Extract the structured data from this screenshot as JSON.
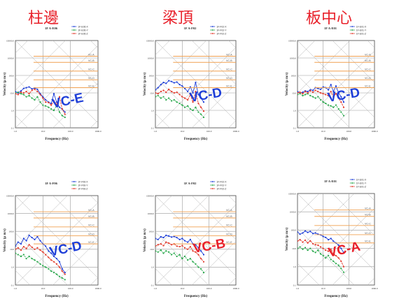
{
  "column_titles": [
    "柱邊",
    "梁頂",
    "板中心"
  ],
  "colors": {
    "title": "#e8202a",
    "badge_red": "#e8202a",
    "badge_blue": "#1f3fd8",
    "series_x": "#1f3fd8",
    "series_y": "#27a84a",
    "series_z": "#e23b2c",
    "criteria": "#f0a050",
    "grid": "#9a9a9a"
  },
  "chart_data": [
    {
      "type": "line",
      "log_x": true,
      "log_y": true,
      "title": "1F A-E06",
      "xlabel": "Frequency (Hz)",
      "ylabel": "Velocity (μ m/s)",
      "badge": "VC-E",
      "badge_color": "blue",
      "x_ticks": [
        "1.0",
        "10.0",
        "100.0",
        "1000.0"
      ],
      "y_ticks": [
        "10000.0",
        "1000.0",
        "100.0",
        "10.0",
        "1.0",
        "0.1"
      ],
      "legend": [
        "1F-E06-X",
        "1F-E06-Y",
        "1F-E06-Z"
      ],
      "criteria_labels": [
        "VC-A",
        "VC-B",
        "VC-C",
        "VC-D",
        "VC-E"
      ],
      "series": [
        {
          "x": [
            1,
            1.25,
            1.6,
            2,
            2.5,
            3.15,
            4,
            5,
            6.3,
            8,
            10,
            12.5,
            16,
            20,
            25,
            31.5,
            40,
            50,
            63
          ],
          "values": [
            12,
            10,
            13,
            18,
            20,
            22,
            17,
            19,
            16,
            9,
            6,
            4,
            3,
            2.5,
            9,
            3,
            1.5,
            1.2,
            0.8
          ]
        },
        {
          "x": [
            1,
            1.25,
            1.6,
            2,
            2.5,
            3.15,
            4,
            5,
            6.3,
            8,
            10,
            12.5,
            16,
            20,
            25,
            31.5,
            40,
            50,
            63
          ],
          "values": [
            10,
            11,
            9,
            8,
            6,
            7,
            5,
            4,
            6,
            3,
            2,
            1.8,
            1.5,
            1.2,
            1,
            2,
            0.8,
            0.5,
            0.4
          ]
        },
        {
          "x": [
            1,
            1.25,
            1.6,
            2,
            2.5,
            3.15,
            4,
            5,
            6.3,
            8,
            10,
            12.5,
            16,
            20,
            25,
            31.5,
            40,
            50,
            63
          ],
          "values": [
            9,
            8,
            11,
            10,
            12,
            9,
            14,
            16,
            12,
            8,
            5,
            3,
            2.8,
            2,
            3.5,
            2.2,
            6,
            1.2,
            0.6
          ]
        }
      ]
    },
    {
      "type": "line",
      "log_x": true,
      "log_y": true,
      "title": "1F A-F02",
      "xlabel": "Frequency (Hz)",
      "ylabel": "Velocity (μ m/s)",
      "badge": "VC-D",
      "badge_color": "blue",
      "x_ticks": [
        "1.0",
        "10.0",
        "100.0",
        "1000.0"
      ],
      "y_ticks": [
        "10000.0",
        "1000.0",
        "100.0",
        "10.0",
        "1.0",
        "0.1"
      ],
      "legend": [
        "1F-F02-X",
        "1F-F02-Y",
        "1F-F02-Z"
      ],
      "criteria_labels": [
        "VC-A",
        "VC-B",
        "VC-C",
        "VC-D",
        "VC-E"
      ],
      "series": [
        {
          "x": [
            1,
            1.25,
            1.6,
            2,
            2.5,
            3.15,
            4,
            5,
            6.3,
            8,
            10,
            12.5,
            16,
            20,
            25,
            31.5,
            40,
            50,
            63
          ],
          "values": [
            15,
            20,
            30,
            40,
            35,
            50,
            45,
            38,
            42,
            30,
            25,
            18,
            12,
            22,
            10,
            40,
            8,
            5,
            3
          ]
        },
        {
          "x": [
            1,
            1.25,
            1.6,
            2,
            2.5,
            3.15,
            4,
            5,
            6.3,
            8,
            10,
            12.5,
            16,
            20,
            25,
            31.5,
            40,
            50,
            63
          ],
          "values": [
            6,
            7,
            5,
            6,
            4,
            5,
            3.5,
            4,
            3,
            2.5,
            2,
            1.5,
            1.8,
            1.2,
            1,
            1.5,
            0.8,
            0.6,
            0.4
          ]
        },
        {
          "x": [
            1,
            1.25,
            1.6,
            2,
            2.5,
            3.15,
            4,
            5,
            6.3,
            8,
            10,
            12.5,
            16,
            20,
            25,
            31.5,
            40,
            50,
            63
          ],
          "values": [
            10,
            9,
            12,
            14,
            11,
            16,
            12,
            10,
            11,
            8,
            6,
            5,
            4,
            8,
            3,
            12,
            2.5,
            1.5,
            0.9
          ]
        }
      ]
    },
    {
      "type": "line",
      "log_x": true,
      "log_y": true,
      "title": "1F A-E01",
      "xlabel": "Frequency (Hz)",
      "ylabel": "Velocity (μ m/s)",
      "badge": "VC-D",
      "badge_color": "blue",
      "x_ticks": [
        "1.0",
        "10.0",
        "100.0",
        "1000.0"
      ],
      "y_ticks": [
        "10000.0",
        "1000.0",
        "100.0",
        "10.0",
        "1.0",
        "0.1"
      ],
      "legend": [
        "1F-E01-X",
        "1F-E01-Y",
        "1F-E01-Z"
      ],
      "criteria_labels": [
        "VC-A",
        "VC-B",
        "VC-C",
        "VC-D",
        "VC-E"
      ],
      "series": [
        {
          "x": [
            1,
            1.25,
            1.6,
            2,
            2.5,
            3.15,
            4,
            5,
            6.3,
            8,
            10,
            12.5,
            16,
            20,
            25,
            31.5,
            40,
            50,
            63
          ],
          "values": [
            12,
            10,
            11,
            13,
            12,
            15,
            14,
            20,
            18,
            16,
            22,
            20,
            15,
            30,
            12,
            25,
            10,
            6,
            3
          ]
        },
        {
          "x": [
            1,
            1.25,
            1.6,
            2,
            2.5,
            3.15,
            4,
            5,
            6.3,
            8,
            10,
            12.5,
            16,
            20,
            25,
            31.5,
            40,
            50,
            63
          ],
          "values": [
            8,
            9,
            7,
            8,
            9,
            7,
            6,
            5,
            6,
            4,
            3,
            2.5,
            2,
            1.8,
            1.5,
            2,
            1.2,
            0.8,
            0.5
          ]
        },
        {
          "x": [
            1,
            1.25,
            1.6,
            2,
            2.5,
            3.15,
            4,
            5,
            6.3,
            8,
            10,
            12.5,
            16,
            20,
            25,
            31.5,
            40,
            50,
            63
          ],
          "values": [
            10,
            11,
            9,
            12,
            10,
            13,
            11,
            14,
            12,
            10,
            9,
            8,
            7,
            12,
            6,
            9,
            5,
            3,
            1.5
          ]
        }
      ]
    },
    {
      "type": "line",
      "log_x": true,
      "log_y": true,
      "title": "1F A-F06",
      "xlabel": "Frequency (Hz)",
      "ylabel": "Velocity (μ m/s)",
      "badge": "VC-D",
      "badge_color": "blue",
      "x_ticks": [
        "1.0",
        "10.0",
        "100.0",
        "1000.0"
      ],
      "y_ticks": [
        "10000.0",
        "1000.0",
        "100.0",
        "10.0",
        "1.0",
        "0.1"
      ],
      "legend": [
        "1F-F06-X",
        "1F-F06-Y",
        "1F-F06-Z"
      ],
      "criteria_labels": [
        "VC-A",
        "VC-B",
        "VC-C",
        "VC-D",
        "VC-E"
      ],
      "series": [
        {
          "x": [
            1,
            1.25,
            1.6,
            2,
            2.5,
            3.15,
            4,
            5,
            6.3,
            8,
            10,
            12.5,
            16,
            20,
            25,
            31.5,
            40,
            50,
            63
          ],
          "values": [
            15,
            25,
            20,
            40,
            30,
            60,
            45,
            35,
            50,
            30,
            20,
            15,
            8,
            6,
            4,
            3,
            2,
            0.8,
            0.5
          ]
        },
        {
          "x": [
            1,
            1.25,
            1.6,
            2,
            2.5,
            3.15,
            4,
            5,
            6.3,
            8,
            10,
            12.5,
            16,
            20,
            25,
            31.5,
            40,
            50,
            63
          ],
          "values": [
            6,
            5,
            4,
            5,
            3,
            4,
            3,
            2.5,
            2,
            1.5,
            1.2,
            1,
            0.8,
            0.6,
            0.5,
            0.4,
            0.3,
            0.25,
            0.2
          ]
        },
        {
          "x": [
            1,
            1.25,
            1.6,
            2,
            2.5,
            3.15,
            4,
            5,
            6.3,
            8,
            10,
            12.5,
            16,
            20,
            25,
            31.5,
            40,
            50,
            63
          ],
          "values": [
            10,
            12,
            9,
            14,
            11,
            18,
            13,
            10,
            12,
            9,
            7,
            5,
            3.5,
            2.5,
            2,
            1.5,
            1,
            0.6,
            0.4
          ]
        }
      ]
    },
    {
      "type": "line",
      "log_x": true,
      "log_y": true,
      "title": "1F A-F02",
      "xlabel": "Frequency (Hz)",
      "ylabel": "Velocity (μ m/s)",
      "badge": "VC-B",
      "badge_color": "red",
      "x_ticks": [
        "1.0",
        "10.0",
        "100.0",
        "1000.0"
      ],
      "y_ticks": [
        "10000.0",
        "1000.0",
        "100.0",
        "10.0",
        "1.0",
        "0.1"
      ],
      "legend": [
        "1F-F02-X",
        "1F-F02-Y",
        "1F-F02-Z"
      ],
      "criteria_labels": [
        "VC-A",
        "VC-B",
        "VC-C",
        "VC-D",
        "VC-E"
      ],
      "series": [
        {
          "x": [
            1,
            1.25,
            1.6,
            2,
            2.5,
            3.15,
            4,
            5,
            6.3,
            8,
            10,
            12.5,
            16,
            20,
            25,
            31.5,
            40,
            50,
            63
          ],
          "values": [
            40,
            35,
            50,
            45,
            60,
            55,
            48,
            52,
            45,
            35,
            40,
            30,
            25,
            35,
            20,
            18,
            12,
            8,
            5
          ]
        },
        {
          "x": [
            1,
            1.25,
            1.6,
            2,
            2.5,
            3.15,
            4,
            5,
            6.3,
            8,
            10,
            12.5,
            16,
            20,
            25,
            31.5,
            40,
            50,
            63
          ],
          "values": [
            8,
            7,
            9,
            6,
            8,
            7,
            5,
            6,
            4,
            5,
            3,
            4,
            2.5,
            3,
            2,
            1.5,
            1,
            0.8,
            0.5
          ]
        },
        {
          "x": [
            1,
            1.25,
            1.6,
            2,
            2.5,
            3.15,
            4,
            5,
            6.3,
            8,
            10,
            12.5,
            16,
            20,
            25,
            31.5,
            40,
            50,
            63
          ],
          "values": [
            15,
            18,
            20,
            16,
            25,
            22,
            18,
            20,
            15,
            14,
            16,
            12,
            10,
            14,
            8,
            7,
            5,
            3,
            2
          ]
        }
      ]
    },
    {
      "type": "line",
      "log_x": true,
      "log_y": true,
      "title": "1F A-E01",
      "xlabel": "Frequency (Hz)",
      "ylabel": "Velocity (μ m/s)",
      "badge": "VC-A",
      "badge_color": "red",
      "x_ticks": [
        "1.0",
        "10.0",
        "100.0",
        "1000.0"
      ],
      "y_ticks": [
        "10000.0",
        "1000.0",
        "100.0",
        "10.0",
        "1.0",
        "0.1"
      ],
      "legend": [
        "1F-E01-X",
        "1F-E01-Y",
        "1F-E01-Z"
      ],
      "criteria_labels": [
        "VC-A",
        "VC-B",
        "VC-C",
        "VC-D",
        "VC-E"
      ],
      "series": [
        {
          "x": [
            1,
            1.25,
            1.6,
            2,
            2.5,
            3.15,
            4,
            5,
            6.3,
            8,
            10,
            12.5,
            16,
            20,
            25,
            31.5,
            40,
            50,
            63
          ],
          "values": [
            80,
            60,
            70,
            90,
            75,
            85,
            65,
            70,
            60,
            55,
            45,
            40,
            30,
            35,
            25,
            20,
            15,
            10,
            6
          ]
        },
        {
          "x": [
            1,
            1.25,
            1.6,
            2,
            2.5,
            3.15,
            4,
            5,
            6.3,
            8,
            10,
            12.5,
            16,
            20,
            25,
            31.5,
            40,
            50,
            63
          ],
          "values": [
            10,
            12,
            9,
            11,
            8,
            10,
            7,
            6,
            8,
            5,
            4,
            3,
            4,
            2.5,
            2,
            1.5,
            1.2,
            0.8,
            0.5
          ]
        },
        {
          "x": [
            1,
            1.25,
            1.6,
            2,
            2.5,
            3.15,
            4,
            5,
            6.3,
            8,
            10,
            12.5,
            16,
            20,
            25,
            31.5,
            40,
            50,
            63
          ],
          "values": [
            25,
            30,
            22,
            28,
            20,
            26,
            18,
            16,
            15,
            12,
            10,
            8,
            7,
            9,
            5,
            4,
            3,
            2,
            1
          ]
        }
      ]
    }
  ]
}
